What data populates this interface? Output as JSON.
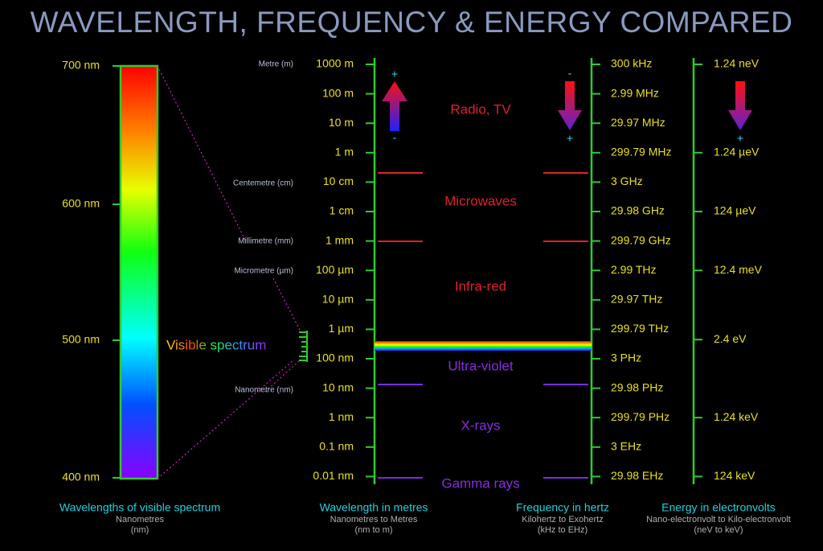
{
  "title": "WAVELENGTH, FREQUENCY & ENERGY COMPARED",
  "visible": {
    "ticks": [
      "700 nm",
      "600 nm",
      "500 nm",
      "400 nm"
    ],
    "label": "Visible spectrum",
    "caption": {
      "title": "Wavelengths of visible spectrum",
      "lines": [
        "Nanometres",
        "(nm)"
      ]
    }
  },
  "wavelength": {
    "units": [
      "Metre (m)",
      "Centemetre (cm)",
      "Millimetre (mm)",
      "Micrometre (µm)",
      "Nanometre (nm)"
    ],
    "ticks": [
      "1000 m",
      "100 m",
      "10 m",
      "1 m",
      "10 cm",
      "1 cm",
      "1 mm",
      "100 µm",
      "10 µm",
      "1 µm",
      "100 nm",
      "10 nm",
      "1 nm",
      "0.1 nm",
      "0.01 nm"
    ],
    "arrow": {
      "top": "+",
      "bottom": "-"
    },
    "caption": {
      "title": "Wavelength in metres",
      "lines": [
        "Nanometres to Metres",
        "(nm to m)"
      ]
    }
  },
  "bands": [
    "Radio, TV",
    "Microwaves",
    "Infra-red",
    "Ultra-violet",
    "X-rays",
    "Gamma rays"
  ],
  "frequency": {
    "ticks": [
      "300 kHz",
      "2.99 MHz",
      "29.97 MHz",
      "299.79 MHz",
      "3 GHz",
      "29.98 GHz",
      "299.79 GHz",
      "2.99 THz",
      "29.97 THz",
      "299.79 THz",
      "3 PHz",
      "29.98 PHz",
      "299.79 PHz",
      "3  EHz",
      "29.98  EHz"
    ],
    "arrow": {
      "top": "-",
      "bottom": "+"
    },
    "caption": {
      "title": "Frequency in hertz",
      "lines": [
        "Kilohertz to Exohertz",
        "(kHz to EHz)"
      ]
    }
  },
  "energy": {
    "ticks": [
      "1.24 neV",
      "1.24 µeV",
      "124 µeV",
      "12.4 meV",
      "2.4 eV",
      "1.24 keV",
      "124 keV"
    ],
    "arrow": {
      "bottom": "+"
    },
    "caption": {
      "title": "Energy in electronvolts",
      "lines": [
        "Nano-electronvolt to Kilo-electronvolt",
        "(neV to keV)"
      ]
    }
  }
}
